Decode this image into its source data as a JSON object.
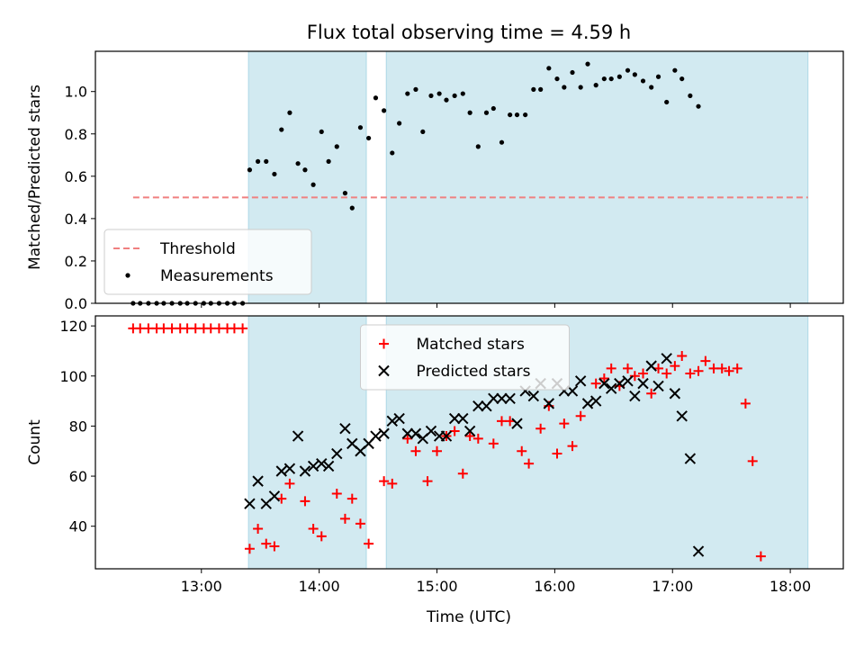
{
  "chart_data": {
    "title": "Flux total observing time = 4.59 h",
    "xlabel": "Time (UTC)",
    "x_units": "hours UTC",
    "xlim": [
      12.1,
      18.45
    ],
    "xticks": [
      13,
      14,
      15,
      16,
      17,
      18
    ],
    "xtick_labels": [
      "13:00",
      "14:00",
      "15:00",
      "16:00",
      "17:00",
      "18:00"
    ],
    "shaded_intervals": [
      {
        "start": 13.4,
        "end": 14.4
      },
      {
        "start": 14.57,
        "end": 18.15
      }
    ],
    "shade_color": "#add8e6",
    "panels": [
      {
        "type": "scatter",
        "ylabel": "Matched/Predicted stars",
        "ylim": [
          0,
          1.19
        ],
        "yticks": [
          0,
          0.2,
          0.4,
          0.6,
          0.8,
          1.0
        ],
        "ytick_labels": [
          "0.0",
          "0.2",
          "0.4",
          "0.6",
          "0.8",
          "1.0"
        ],
        "legend_position": "lower-left",
        "threshold": {
          "name": "Threshold",
          "value": 0.5,
          "x_range": [
            12.42,
            18.15
          ],
          "color": "#f08080",
          "style": "dashed"
        },
        "series": [
          {
            "name": "Measurements",
            "marker": "dot",
            "color": "#000000",
            "points": [
              [
                12.42,
                0.0
              ],
              [
                12.48,
                0.0
              ],
              [
                12.55,
                0.0
              ],
              [
                12.62,
                0.0
              ],
              [
                12.68,
                0.0
              ],
              [
                12.75,
                0.0
              ],
              [
                12.82,
                0.0
              ],
              [
                12.88,
                0.0
              ],
              [
                12.95,
                0.0
              ],
              [
                13.02,
                0.0
              ],
              [
                13.08,
                0.0
              ],
              [
                13.15,
                0.0
              ],
              [
                13.22,
                0.0
              ],
              [
                13.28,
                0.0
              ],
              [
                13.35,
                0.0
              ],
              [
                13.41,
                0.63
              ],
              [
                13.48,
                0.67
              ],
              [
                13.55,
                0.67
              ],
              [
                13.62,
                0.61
              ],
              [
                13.68,
                0.82
              ],
              [
                13.75,
                0.9
              ],
              [
                13.82,
                0.66
              ],
              [
                13.88,
                0.63
              ],
              [
                13.95,
                0.56
              ],
              [
                14.02,
                0.81
              ],
              [
                14.08,
                0.67
              ],
              [
                14.15,
                0.74
              ],
              [
                14.22,
                0.52
              ],
              [
                14.28,
                0.45
              ],
              [
                14.35,
                0.83
              ],
              [
                14.42,
                0.78
              ],
              [
                14.48,
                0.97
              ],
              [
                14.55,
                0.91
              ],
              [
                14.62,
                0.71
              ],
              [
                14.68,
                0.85
              ],
              [
                14.75,
                0.99
              ],
              [
                14.82,
                1.01
              ],
              [
                14.88,
                0.81
              ],
              [
                14.95,
                0.98
              ],
              [
                15.02,
                0.99
              ],
              [
                15.08,
                0.96
              ],
              [
                15.15,
                0.98
              ],
              [
                15.22,
                0.99
              ],
              [
                15.28,
                0.9
              ],
              [
                15.35,
                0.74
              ],
              [
                15.42,
                0.9
              ],
              [
                15.48,
                0.92
              ],
              [
                15.55,
                0.76
              ],
              [
                15.62,
                0.89
              ],
              [
                15.68,
                0.89
              ],
              [
                15.75,
                0.89
              ],
              [
                15.82,
                1.01
              ],
              [
                15.88,
                1.01
              ],
              [
                15.95,
                1.11
              ],
              [
                16.02,
                1.06
              ],
              [
                16.08,
                1.02
              ],
              [
                16.15,
                1.09
              ],
              [
                16.22,
                1.02
              ],
              [
                16.28,
                1.13
              ],
              [
                16.35,
                1.03
              ],
              [
                16.42,
                1.06
              ],
              [
                16.48,
                1.06
              ],
              [
                16.55,
                1.07
              ],
              [
                16.62,
                1.1
              ],
              [
                16.68,
                1.08
              ],
              [
                16.75,
                1.05
              ],
              [
                16.82,
                1.02
              ],
              [
                16.88,
                1.07
              ],
              [
                16.95,
                0.95
              ],
              [
                17.02,
                1.1
              ],
              [
                17.08,
                1.06
              ],
              [
                17.15,
                0.98
              ],
              [
                17.22,
                0.93
              ]
            ]
          }
        ]
      },
      {
        "type": "scatter",
        "ylabel": "Count",
        "ylim": [
          23,
          124
        ],
        "yticks": [
          40,
          60,
          80,
          100,
          120
        ],
        "ytick_labels": [
          "40",
          "60",
          "80",
          "100",
          "120"
        ],
        "legend_position": "top-center",
        "series": [
          {
            "name": "Matched stars",
            "marker": "plus",
            "color": "#ff0000",
            "points": [
              [
                12.42,
                119
              ],
              [
                12.48,
                119
              ],
              [
                12.55,
                119
              ],
              [
                12.62,
                119
              ],
              [
                12.68,
                119
              ],
              [
                12.75,
                119
              ],
              [
                12.82,
                119
              ],
              [
                12.88,
                119
              ],
              [
                12.95,
                119
              ],
              [
                13.02,
                119
              ],
              [
                13.08,
                119
              ],
              [
                13.15,
                119
              ],
              [
                13.22,
                119
              ],
              [
                13.28,
                119
              ],
              [
                13.35,
                119
              ],
              [
                13.41,
                31
              ],
              [
                13.48,
                39
              ],
              [
                13.55,
                33
              ],
              [
                13.62,
                32
              ],
              [
                13.68,
                51
              ],
              [
                13.75,
                57
              ],
              [
                13.88,
                50
              ],
              [
                13.95,
                39
              ],
              [
                14.02,
                36
              ],
              [
                14.15,
                53
              ],
              [
                14.22,
                43
              ],
              [
                14.28,
                51
              ],
              [
                14.35,
                41
              ],
              [
                14.42,
                33
              ],
              [
                14.55,
                58
              ],
              [
                14.62,
                57
              ],
              [
                14.75,
                75
              ],
              [
                14.82,
                70
              ],
              [
                14.92,
                58
              ],
              [
                15.0,
                70
              ],
              [
                15.08,
                76
              ],
              [
                15.15,
                78
              ],
              [
                15.22,
                61
              ],
              [
                15.28,
                76
              ],
              [
                15.35,
                75
              ],
              [
                15.48,
                73
              ],
              [
                15.55,
                82
              ],
              [
                15.62,
                82
              ],
              [
                15.72,
                70
              ],
              [
                15.78,
                65
              ],
              [
                15.88,
                79
              ],
              [
                15.95,
                88
              ],
              [
                16.02,
                69
              ],
              [
                16.08,
                81
              ],
              [
                16.15,
                72
              ],
              [
                16.22,
                84
              ],
              [
                16.35,
                97
              ],
              [
                16.42,
                99
              ],
              [
                16.48,
                103
              ],
              [
                16.55,
                96
              ],
              [
                16.62,
                103
              ],
              [
                16.68,
                100
              ],
              [
                16.75,
                101
              ],
              [
                16.82,
                93
              ],
              [
                16.88,
                103
              ],
              [
                16.95,
                101
              ],
              [
                17.02,
                104
              ],
              [
                17.08,
                108
              ],
              [
                17.15,
                101
              ],
              [
                17.22,
                102
              ],
              [
                17.28,
                106
              ],
              [
                17.35,
                103
              ],
              [
                17.42,
                103
              ],
              [
                17.48,
                102
              ],
              [
                17.55,
                103
              ],
              [
                17.62,
                89
              ],
              [
                17.68,
                66
              ],
              [
                17.75,
                28
              ]
            ]
          },
          {
            "name": "Predicted stars",
            "marker": "x",
            "color": "#000000",
            "points": [
              [
                13.41,
                49
              ],
              [
                13.48,
                58
              ],
              [
                13.55,
                49
              ],
              [
                13.62,
                52
              ],
              [
                13.68,
                62
              ],
              [
                13.75,
                63
              ],
              [
                13.82,
                76
              ],
              [
                13.88,
                62
              ],
              [
                13.95,
                64
              ],
              [
                14.02,
                65
              ],
              [
                14.08,
                64
              ],
              [
                14.15,
                69
              ],
              [
                14.22,
                79
              ],
              [
                14.28,
                73
              ],
              [
                14.35,
                70
              ],
              [
                14.42,
                73
              ],
              [
                14.48,
                76
              ],
              [
                14.55,
                77
              ],
              [
                14.62,
                82
              ],
              [
                14.68,
                83
              ],
              [
                14.75,
                77
              ],
              [
                14.82,
                77
              ],
              [
                14.88,
                75
              ],
              [
                14.95,
                78
              ],
              [
                15.02,
                76
              ],
              [
                15.08,
                76
              ],
              [
                15.15,
                83
              ],
              [
                15.22,
                83
              ],
              [
                15.28,
                78
              ],
              [
                15.35,
                88
              ],
              [
                15.42,
                88
              ],
              [
                15.48,
                91
              ],
              [
                15.55,
                91
              ],
              [
                15.62,
                91
              ],
              [
                15.68,
                81
              ],
              [
                15.75,
                94
              ],
              [
                15.82,
                92
              ],
              [
                15.88,
                97
              ],
              [
                15.95,
                89
              ],
              [
                16.02,
                97
              ],
              [
                16.08,
                94
              ],
              [
                16.15,
                94
              ],
              [
                16.22,
                98
              ],
              [
                16.28,
                89
              ],
              [
                16.35,
                90
              ],
              [
                16.42,
                97
              ],
              [
                16.48,
                95
              ],
              [
                16.55,
                97
              ],
              [
                16.62,
                98
              ],
              [
                16.68,
                92
              ],
              [
                16.75,
                97
              ],
              [
                16.82,
                104
              ],
              [
                16.88,
                96
              ],
              [
                16.95,
                107
              ],
              [
                17.02,
                93
              ],
              [
                17.08,
                84
              ],
              [
                17.15,
                67
              ],
              [
                17.22,
                30
              ]
            ]
          }
        ]
      }
    ]
  }
}
